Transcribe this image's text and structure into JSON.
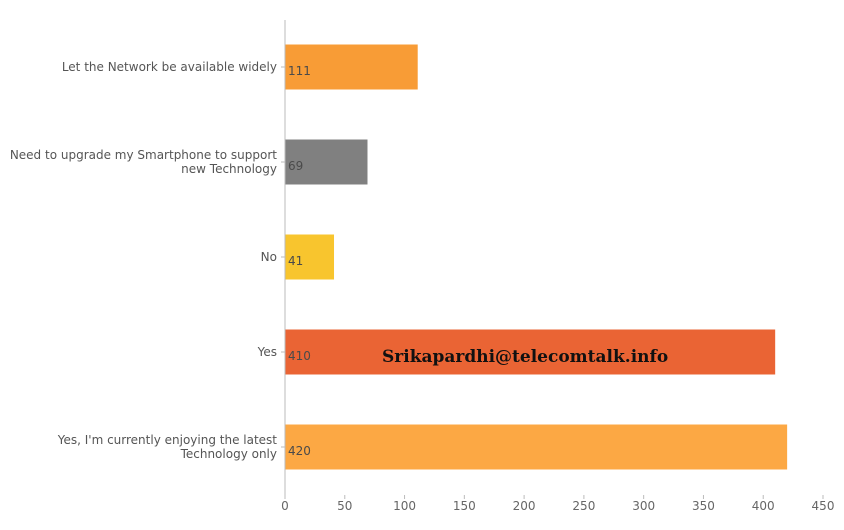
{
  "chart_data": {
    "type": "bar",
    "orientation": "horizontal",
    "categories": [
      "Let the Network be available widely",
      "Need to upgrade my Smartphone to support new Technology",
      "No",
      "Yes",
      "Yes, I'm currently enjoying the latest Technology only"
    ],
    "category_lines": [
      [
        "Let the Network be available widely"
      ],
      [
        "Need to upgrade my Smartphone to support",
        "new Technology"
      ],
      [
        "No"
      ],
      [
        "Yes"
      ],
      [
        "Yes, I'm currently enjoying the latest",
        "Technology only"
      ]
    ],
    "values": [
      111,
      69,
      41,
      410,
      420
    ],
    "data_labels": [
      "111",
      "69",
      "41",
      "410",
      "420"
    ],
    "colors": [
      "#f89c36",
      "#808080",
      "#f8c52e",
      "#ea6434",
      "#fca844"
    ],
    "xlim": [
      0,
      450
    ],
    "xticks": [
      "0",
      "50",
      "100",
      "150",
      "200",
      "250",
      "300",
      "350",
      "400",
      "450"
    ],
    "grid": false,
    "legend": "none",
    "title": "",
    "xlabel": "",
    "ylabel": ""
  },
  "watermark": "Srikapardhi@telecomtalk.info"
}
